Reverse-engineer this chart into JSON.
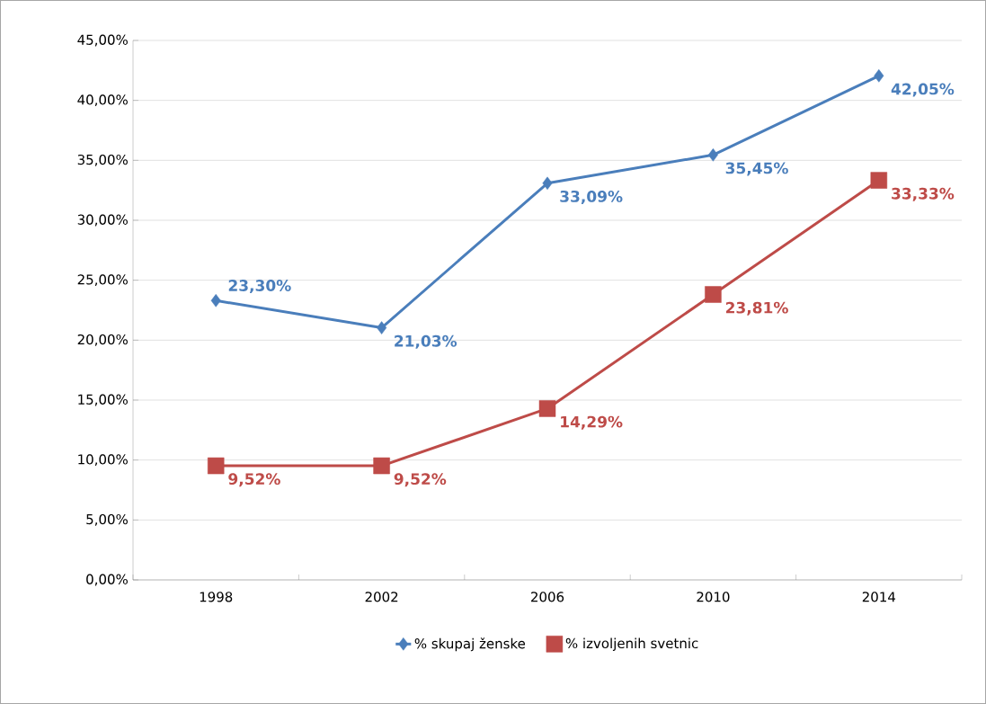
{
  "chart_data": {
    "type": "line",
    "categories": [
      "1998",
      "2002",
      "2006",
      "2010",
      "2014"
    ],
    "series": [
      {
        "name": "% skupaj ženske",
        "color": "#4a7ebb",
        "marker": "diamond",
        "values": [
          23.3,
          21.03,
          33.09,
          35.45,
          42.05
        ],
        "value_labels": [
          "23,30%",
          "21,03%",
          "33,09%",
          "35,45%",
          "42,05%"
        ]
      },
      {
        "name": "% izvoljenih svetnic",
        "color": "#be4b48",
        "marker": "square",
        "values": [
          9.52,
          9.52,
          14.29,
          23.81,
          33.33
        ],
        "value_labels": [
          "9,52%",
          "9,52%",
          "14,29%",
          "23,81%",
          "33,33%"
        ]
      }
    ],
    "ylim": [
      0,
      45
    ],
    "yticks": [
      {
        "value": 0,
        "label": "0,00%"
      },
      {
        "value": 5,
        "label": "5,00%"
      },
      {
        "value": 10,
        "label": "10,00%"
      },
      {
        "value": 15,
        "label": "15,00%"
      },
      {
        "value": 20,
        "label": "20,00%"
      },
      {
        "value": 25,
        "label": "25,00%"
      },
      {
        "value": 30,
        "label": "30,00%"
      },
      {
        "value": 35,
        "label": "35,00%"
      },
      {
        "value": 40,
        "label": "40,00%"
      },
      {
        "value": 45,
        "label": "45,00%"
      }
    ],
    "grid": "y",
    "legend": "bottom"
  }
}
